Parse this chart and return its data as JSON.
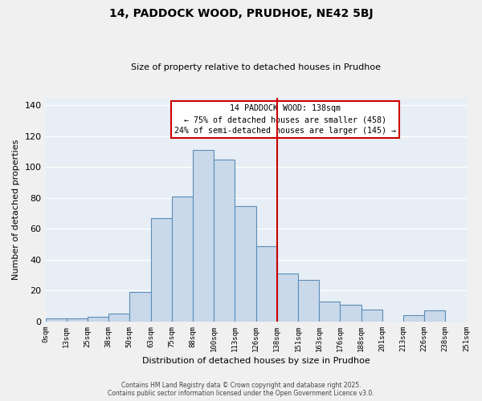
{
  "title": "14, PADDOCK WOOD, PRUDHOE, NE42 5BJ",
  "subtitle": "Size of property relative to detached houses in Prudhoe",
  "xlabel": "Distribution of detached houses by size in Prudhoe",
  "ylabel": "Number of detached properties",
  "bar_labels": [
    "0sqm",
    "13sqm",
    "25sqm",
    "38sqm",
    "50sqm",
    "63sqm",
    "75sqm",
    "88sqm",
    "100sqm",
    "113sqm",
    "126sqm",
    "138sqm",
    "151sqm",
    "163sqm",
    "176sqm",
    "188sqm",
    "201sqm",
    "213sqm",
    "226sqm",
    "238sqm",
    "251sqm"
  ],
  "bar_values": [
    2,
    2,
    3,
    5,
    19,
    67,
    81,
    111,
    105,
    75,
    49,
    31,
    27,
    13,
    11,
    8,
    0,
    4,
    7,
    0
  ],
  "bar_color": "#c9d9ea",
  "bar_edgecolor": "#5b8db8",
  "vline_label_index": 11,
  "vline_color": "#cc0000",
  "ylim": [
    0,
    145
  ],
  "yticks": [
    0,
    20,
    40,
    60,
    80,
    100,
    120,
    140
  ],
  "annotation_title": "14 PADDOCK WOOD: 138sqm",
  "annotation_line1": "← 75% of detached houses are smaller (458)",
  "annotation_line2": "24% of semi-detached houses are larger (145) →",
  "annotation_box_edgecolor": "#cc0000",
  "footer_line1": "Contains HM Land Registry data © Crown copyright and database right 2025.",
  "footer_line2": "Contains public sector information licensed under the Open Government Licence v3.0.",
  "plot_bg_color": "#e8eef5",
  "fig_bg_color": "#f0f0f0",
  "grid_color": "#ffffff"
}
